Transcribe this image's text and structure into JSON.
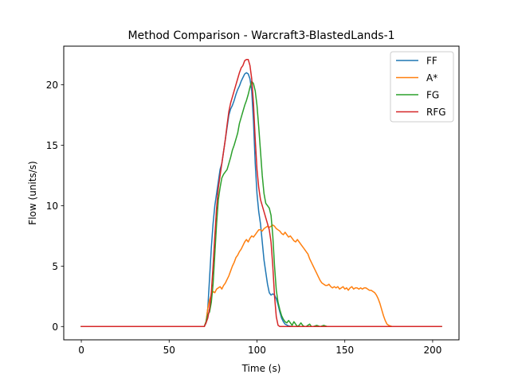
{
  "chart_data": {
    "type": "line",
    "title": "Method Comparison - Warcraft3-BlastedLands-1",
    "xlabel": "Time (s)",
    "ylabel": "Flow (units/s)",
    "xlim": [
      -10,
      215
    ],
    "ylim": [
      -1.1,
      23.2
    ],
    "xticks": [
      0,
      50,
      100,
      150,
      200
    ],
    "yticks": [
      0,
      5,
      10,
      15,
      20
    ],
    "grid": false,
    "legend_position": "top-right",
    "series": [
      {
        "name": "FF",
        "color": "#1f77b4",
        "points": [
          [
            0,
            0
          ],
          [
            70,
            0
          ],
          [
            71,
            0.3
          ],
          [
            72,
            1.5
          ],
          [
            73,
            4
          ],
          [
            74,
            6.5
          ],
          [
            75,
            8.5
          ],
          [
            76,
            10
          ],
          [
            77,
            11
          ],
          [
            78,
            12
          ],
          [
            79,
            13
          ],
          [
            80,
            13.5
          ],
          [
            81,
            14.5
          ],
          [
            82,
            15.5
          ],
          [
            83,
            16.5
          ],
          [
            84,
            17.5
          ],
          [
            85,
            18
          ],
          [
            86,
            18.3
          ],
          [
            87,
            18.7
          ],
          [
            88,
            19.2
          ],
          [
            89,
            19.6
          ],
          [
            90,
            19.9
          ],
          [
            91,
            20.3
          ],
          [
            92,
            20.6
          ],
          [
            93,
            20.9
          ],
          [
            94,
            21.0
          ],
          [
            95,
            20.9
          ],
          [
            96,
            20.5
          ],
          [
            97,
            19.5
          ],
          [
            98,
            17
          ],
          [
            99,
            13.5
          ],
          [
            100,
            11
          ],
          [
            101,
            9.5
          ],
          [
            102,
            8.5
          ],
          [
            103,
            7
          ],
          [
            104,
            5.5
          ],
          [
            105,
            4.5
          ],
          [
            106,
            3.5
          ],
          [
            107,
            2.8
          ],
          [
            108,
            2.6
          ],
          [
            109,
            2.7
          ],
          [
            110,
            2.6
          ],
          [
            111,
            2.3
          ],
          [
            112,
            1.8
          ],
          [
            113,
            1.2
          ],
          [
            114,
            0.7
          ],
          [
            115,
            0.4
          ],
          [
            116,
            0.2
          ],
          [
            118,
            0.05
          ],
          [
            120,
            0
          ],
          [
            205,
            0
          ]
        ]
      },
      {
        "name": "A*",
        "color": "#ff7f0e",
        "points": [
          [
            0,
            0
          ],
          [
            70,
            0
          ],
          [
            71,
            0.4
          ],
          [
            72,
            1.5
          ],
          [
            73,
            2.2
          ],
          [
            74,
            2.6
          ],
          [
            75,
            2.9
          ],
          [
            76,
            2.8
          ],
          [
            77,
            3.1
          ],
          [
            78,
            3.2
          ],
          [
            79,
            3.3
          ],
          [
            80,
            3.1
          ],
          [
            81,
            3.4
          ],
          [
            82,
            3.6
          ],
          [
            83,
            3.9
          ],
          [
            84,
            4.2
          ],
          [
            85,
            4.6
          ],
          [
            86,
            5.0
          ],
          [
            87,
            5.3
          ],
          [
            88,
            5.7
          ],
          [
            89,
            5.9
          ],
          [
            90,
            6.2
          ],
          [
            91,
            6.4
          ],
          [
            92,
            6.7
          ],
          [
            93,
            7.0
          ],
          [
            94,
            7.2
          ],
          [
            95,
            7.0
          ],
          [
            96,
            7.3
          ],
          [
            97,
            7.5
          ],
          [
            98,
            7.4
          ],
          [
            99,
            7.6
          ],
          [
            100,
            7.8
          ],
          [
            101,
            8.0
          ],
          [
            102,
            8.0
          ],
          [
            103,
            7.9
          ],
          [
            104,
            8.1
          ],
          [
            105,
            8.2
          ],
          [
            106,
            8.3
          ],
          [
            107,
            8.2
          ],
          [
            108,
            8.3
          ],
          [
            109,
            8.4
          ],
          [
            110,
            8.3
          ],
          [
            111,
            8.1
          ],
          [
            112,
            8.0
          ],
          [
            113,
            7.9
          ],
          [
            114,
            7.7
          ],
          [
            115,
            7.6
          ],
          [
            116,
            7.8
          ],
          [
            117,
            7.6
          ],
          [
            118,
            7.4
          ],
          [
            119,
            7.5
          ],
          [
            120,
            7.3
          ],
          [
            121,
            7.1
          ],
          [
            122,
            7.0
          ],
          [
            123,
            7.2
          ],
          [
            124,
            7.0
          ],
          [
            125,
            6.8
          ],
          [
            126,
            6.6
          ],
          [
            127,
            6.4
          ],
          [
            128,
            6.2
          ],
          [
            129,
            6.0
          ],
          [
            130,
            5.6
          ],
          [
            131,
            5.3
          ],
          [
            132,
            5.0
          ],
          [
            133,
            4.7
          ],
          [
            134,
            4.4
          ],
          [
            135,
            4.1
          ],
          [
            136,
            3.8
          ],
          [
            137,
            3.6
          ],
          [
            138,
            3.5
          ],
          [
            139,
            3.4
          ],
          [
            140,
            3.4
          ],
          [
            141,
            3.5
          ],
          [
            142,
            3.3
          ],
          [
            143,
            3.2
          ],
          [
            144,
            3.3
          ],
          [
            145,
            3.2
          ],
          [
            146,
            3.3
          ],
          [
            147,
            3.1
          ],
          [
            148,
            3.2
          ],
          [
            149,
            3.3
          ],
          [
            150,
            3.1
          ],
          [
            151,
            3.2
          ],
          [
            152,
            3.0
          ],
          [
            153,
            3.2
          ],
          [
            154,
            3.3
          ],
          [
            155,
            3.1
          ],
          [
            156,
            3.2
          ],
          [
            157,
            3.2
          ],
          [
            158,
            3.1
          ],
          [
            159,
            3.2
          ],
          [
            160,
            3.1
          ],
          [
            161,
            3.2
          ],
          [
            162,
            3.2
          ],
          [
            163,
            3.1
          ],
          [
            164,
            3.0
          ],
          [
            165,
            3.0
          ],
          [
            166,
            2.9
          ],
          [
            167,
            2.8
          ],
          [
            168,
            2.6
          ],
          [
            169,
            2.3
          ],
          [
            170,
            1.9
          ],
          [
            171,
            1.4
          ],
          [
            172,
            0.9
          ],
          [
            173,
            0.5
          ],
          [
            174,
            0.2
          ],
          [
            175,
            0.1
          ],
          [
            177,
            0
          ],
          [
            205,
            0
          ]
        ]
      },
      {
        "name": "FG",
        "color": "#2ca02c",
        "points": [
          [
            0,
            0
          ],
          [
            70,
            0
          ],
          [
            71,
            0.4
          ],
          [
            72,
            1.0
          ],
          [
            73,
            1.2
          ],
          [
            74,
            2.0
          ],
          [
            75,
            3.5
          ],
          [
            76,
            6.0
          ],
          [
            77,
            8.5
          ],
          [
            78,
            10.5
          ],
          [
            79,
            11.5
          ],
          [
            80,
            12.3
          ],
          [
            81,
            12.6
          ],
          [
            82,
            12.8
          ],
          [
            83,
            13.0
          ],
          [
            84,
            13.5
          ],
          [
            85,
            14.0
          ],
          [
            86,
            14.6
          ],
          [
            87,
            15.0
          ],
          [
            88,
            15.5
          ],
          [
            89,
            16.0
          ],
          [
            90,
            16.8
          ],
          [
            91,
            17.3
          ],
          [
            92,
            17.8
          ],
          [
            93,
            18.3
          ],
          [
            94,
            18.7
          ],
          [
            95,
            19.2
          ],
          [
            96,
            19.8
          ],
          [
            97,
            20.3
          ],
          [
            98,
            20.1
          ],
          [
            99,
            19.5
          ],
          [
            100,
            18.3
          ],
          [
            101,
            16.5
          ],
          [
            102,
            14.5
          ],
          [
            103,
            12.5
          ],
          [
            104,
            11.0
          ],
          [
            105,
            10.2
          ],
          [
            106,
            10.0
          ],
          [
            107,
            9.8
          ],
          [
            108,
            9.2
          ],
          [
            109,
            7.5
          ],
          [
            110,
            5.0
          ],
          [
            111,
            3.0
          ],
          [
            112,
            2.0
          ],
          [
            113,
            1.4
          ],
          [
            114,
            0.9
          ],
          [
            115,
            0.6
          ],
          [
            116,
            0.4
          ],
          [
            117,
            0.3
          ],
          [
            118,
            0.5
          ],
          [
            119,
            0.3
          ],
          [
            120,
            0.1
          ],
          [
            121,
            0.4
          ],
          [
            122,
            0.2
          ],
          [
            123,
            0.0
          ],
          [
            124,
            0.1
          ],
          [
            125,
            0.3
          ],
          [
            126,
            0.1
          ],
          [
            127,
            0.0
          ],
          [
            128,
            0.0
          ],
          [
            130,
            0.2
          ],
          [
            131,
            0.0
          ],
          [
            132,
            0.0
          ],
          [
            134,
            0.1
          ],
          [
            136,
            0.0
          ],
          [
            138,
            0.1
          ],
          [
            140,
            0.0
          ],
          [
            205,
            0
          ]
        ]
      },
      {
        "name": "RFG",
        "color": "#d62728",
        "points": [
          [
            0,
            0
          ],
          [
            70,
            0
          ],
          [
            71,
            0.3
          ],
          [
            72,
            0.7
          ],
          [
            73,
            1.5
          ],
          [
            74,
            2.8
          ],
          [
            75,
            5.0
          ],
          [
            76,
            7.5
          ],
          [
            77,
            9.8
          ],
          [
            78,
            11.5
          ],
          [
            79,
            12.5
          ],
          [
            80,
            13.5
          ],
          [
            81,
            14.5
          ],
          [
            82,
            15.5
          ],
          [
            83,
            16.7
          ],
          [
            84,
            17.8
          ],
          [
            85,
            18.5
          ],
          [
            86,
            19.0
          ],
          [
            87,
            19.5
          ],
          [
            88,
            20.0
          ],
          [
            89,
            20.5
          ],
          [
            90,
            21.0
          ],
          [
            91,
            21.4
          ],
          [
            92,
            21.6
          ],
          [
            93,
            22.0
          ],
          [
            94,
            22.1
          ],
          [
            95,
            22.1
          ],
          [
            96,
            21.6
          ],
          [
            97,
            20.5
          ],
          [
            98,
            18.5
          ],
          [
            99,
            15.5
          ],
          [
            100,
            13.0
          ],
          [
            101,
            11.5
          ],
          [
            102,
            10.5
          ],
          [
            103,
            10.0
          ],
          [
            104,
            9.5
          ],
          [
            105,
            9.0
          ],
          [
            106,
            8.5
          ],
          [
            107,
            8.0
          ],
          [
            108,
            7.0
          ],
          [
            109,
            5.0
          ],
          [
            110,
            2.5
          ],
          [
            111,
            0.8
          ],
          [
            112,
            0.1
          ],
          [
            113,
            0.0
          ],
          [
            205,
            0
          ]
        ]
      }
    ]
  }
}
